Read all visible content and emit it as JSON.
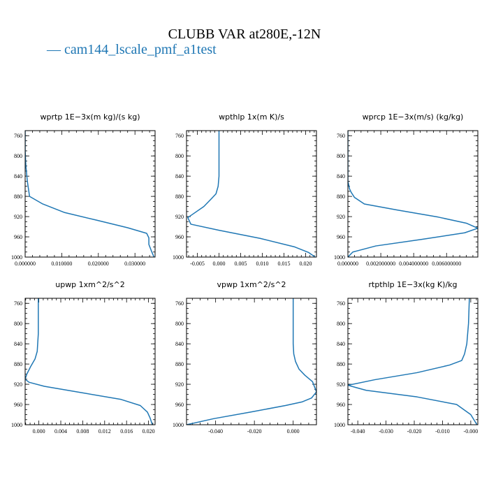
{
  "figure": {
    "title": "CLUBB VAR at280E,-12N",
    "legend_label": "— cam144_lscale_pmf_a1test",
    "line_color": "#1f77b4"
  },
  "chart_data": [
    {
      "type": "line",
      "title": "wprtp   1E−3x(m kg)/(s kg)",
      "xlim": [
        0.0,
        0.0355
      ],
      "ylim": [
        1000,
        750
      ],
      "x_ticks": [
        0.0,
        0.01,
        0.02,
        0.03
      ],
      "x_tick_labels": [
        "0.000000",
        "0.010000",
        "0.020000",
        "0.030000"
      ],
      "y_ticks": [
        760,
        800,
        840,
        880,
        920,
        960,
        1000
      ],
      "y_tick_labels": [
        "760",
        "800",
        "840",
        "880",
        "920",
        "960",
        "1000"
      ],
      "series": [
        {
          "x": [
            0.0,
            0.0,
            0.0002,
            0.0006,
            0.0012,
            0.0048,
            0.0108,
            0.0195,
            0.028,
            0.0332,
            0.0338,
            0.0338,
            0.0345,
            0.0352
          ],
          "y": [
            750,
            790,
            820,
            850,
            880,
            895,
            912,
            927,
            942,
            953,
            962,
            975,
            988,
            1000
          ]
        }
      ]
    },
    {
      "type": "line",
      "title": "wpthlp   1x(m K)/s",
      "xlim": [
        -0.0075,
        0.0225
      ],
      "ylim": [
        1000,
        750
      ],
      "x_ticks": [
        -0.005,
        0.0,
        0.005,
        0.01,
        0.015,
        0.02
      ],
      "x_tick_labels": [
        "-0.005",
        "0.000",
        "0.005",
        "0.010",
        "0.015",
        "0.020"
      ],
      "y_ticks": [
        760,
        800,
        840,
        880,
        920,
        960,
        1000
      ],
      "y_tick_labels": [
        "760",
        "800",
        "840",
        "880",
        "920",
        "960",
        "1000"
      ],
      "series": [
        {
          "x": [
            0.0,
            0.0,
            0.0,
            -0.0002,
            -0.0007,
            -0.0018,
            -0.0035,
            -0.0062,
            -0.0072,
            -0.0065,
            0.0,
            0.0095,
            0.0175,
            0.0207,
            0.0222
          ],
          "y": [
            750,
            800,
            840,
            860,
            875,
            885,
            900,
            916,
            922,
            935,
            947,
            963,
            980,
            991,
            1000
          ]
        }
      ]
    },
    {
      "type": "line",
      "title": "wprcp   1E−3x(m/s) (kg/kg)",
      "xlim": [
        0.0,
        0.0079
      ],
      "ylim": [
        1000,
        750
      ],
      "x_ticks": [
        0.0,
        0.002,
        0.004,
        0.006
      ],
      "x_tick_labels": [
        "0.000000",
        "0.002000000",
        "0.004000000",
        "0.006000000"
      ],
      "y_ticks": [
        760,
        800,
        840,
        880,
        920,
        960,
        1000
      ],
      "y_tick_labels": [
        "760",
        "800",
        "840",
        "880",
        "920",
        "960",
        "1000"
      ],
      "series": [
        {
          "x": [
            0.0,
            0.0,
            0.0,
            0.0001,
            0.0002,
            0.0004,
            0.001,
            0.003,
            0.0055,
            0.0072,
            0.0079,
            0.0071,
            0.0045,
            0.0017,
            0.0003,
            0.0
          ],
          "y": [
            750,
            820,
            850,
            865,
            872,
            882,
            895,
            907,
            921,
            933,
            943,
            952,
            965,
            978,
            990,
            1000
          ]
        }
      ]
    },
    {
      "type": "line",
      "title": "upwp   1xm^2/s^2",
      "xlim": [
        -0.0025,
        0.0212
      ],
      "ylim": [
        1000,
        750
      ],
      "x_ticks": [
        0.0,
        0.004,
        0.008,
        0.012,
        0.016,
        0.02
      ],
      "x_tick_labels": [
        "0.000",
        "0.004",
        "0.008",
        "0.012",
        "0.016",
        "0.020"
      ],
      "y_ticks": [
        760,
        800,
        840,
        880,
        920,
        960,
        1000
      ],
      "y_tick_labels": [
        "760",
        "800",
        "840",
        "880",
        "920",
        "960",
        "1000"
      ],
      "series": [
        {
          "x": [
            -0.0001,
            -0.0001,
            -0.0003,
            -0.0007,
            -0.0015,
            -0.0022,
            -0.0025,
            -0.0018,
            0.001,
            0.008,
            0.015,
            0.0185,
            0.0198,
            0.0203,
            0.0207
          ],
          "y": [
            750,
            820,
            855,
            870,
            885,
            900,
            910,
            916,
            924,
            937,
            950,
            962,
            975,
            987,
            1000
          ]
        }
      ]
    },
    {
      "type": "line",
      "title": "vpwp   1xm^2/s^2",
      "xlim": [
        -0.055,
        0.012
      ],
      "ylim": [
        1000,
        750
      ],
      "x_ticks": [
        -0.04,
        -0.02,
        0.0
      ],
      "x_tick_labels": [
        "-0.040",
        "-0.020",
        "0.000"
      ],
      "y_ticks": [
        760,
        800,
        840,
        880,
        920,
        960,
        1000
      ],
      "y_tick_labels": [
        "760",
        "800",
        "840",
        "880",
        "920",
        "960",
        "1000"
      ],
      "series": [
        {
          "x": [
            0.0,
            0.0,
            0.0003,
            0.0012,
            0.003,
            0.006,
            0.01,
            0.012,
            0.0095,
            0.0045,
            -0.004,
            -0.022,
            -0.041,
            -0.055
          ],
          "y": [
            750,
            840,
            860,
            875,
            890,
            902,
            915,
            935,
            947,
            955,
            962,
            975,
            988,
            1000
          ]
        }
      ]
    },
    {
      "type": "line",
      "title": "rtpthlp   1E−3x(kg K)/kg",
      "xlim": [
        -0.0435,
        0.0025
      ],
      "ylim": [
        1000,
        750
      ],
      "x_ticks": [
        -0.04,
        -0.03,
        -0.02,
        -0.01,
        0.0
      ],
      "x_tick_labels": [
        "-0.040",
        "-0.030",
        "-0.020",
        "-0.010",
        "-0.000"
      ],
      "y_ticks": [
        760,
        800,
        840,
        880,
        920,
        960,
        1000
      ],
      "y_tick_labels": [
        "760",
        "800",
        "840",
        "880",
        "920",
        "960",
        "1000"
      ],
      "series": [
        {
          "x": [
            -0.0005,
            -0.0008,
            -0.0014,
            -0.0022,
            -0.0032,
            -0.0075,
            -0.019,
            -0.034,
            -0.0435,
            -0.037,
            -0.019,
            -0.005,
            0.0,
            0.0022
          ],
          "y": [
            750,
            800,
            840,
            860,
            873,
            882,
            897,
            911,
            922,
            932,
            945,
            960,
            980,
            1000
          ]
        }
      ]
    }
  ]
}
